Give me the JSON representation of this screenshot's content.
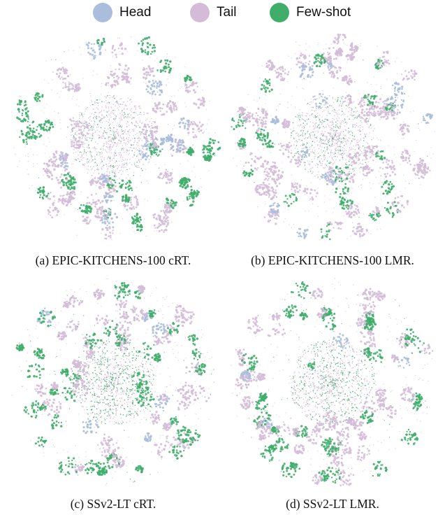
{
  "legend": [
    {
      "label": "Head",
      "color": "#a9bedc"
    },
    {
      "label": "Tail",
      "color": "#d4bcd8"
    },
    {
      "label": "Few-shot",
      "color": "#3fae6a"
    }
  ],
  "panels": [
    {
      "caption": "(a) EPIC-KITCHENS-100 cRT.",
      "head_share": "medium",
      "fewshot_spread": "clustered-edge"
    },
    {
      "caption": "(b) EPIC-KITCHENS-100 LMR.",
      "head_share": "medium",
      "fewshot_spread": "mixed"
    },
    {
      "caption": "(c) SSv2-LT cRT.",
      "head_share": "low",
      "fewshot_spread": "scattered"
    },
    {
      "caption": "(d) SSv2-LT LMR.",
      "head_share": "low",
      "fewshot_spread": "scattered"
    }
  ]
}
